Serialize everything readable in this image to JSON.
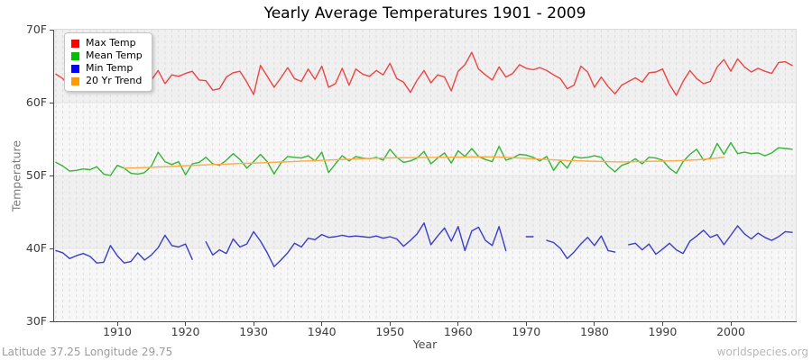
{
  "footer": {
    "left": "Latitude 37.25 Longitude 29.75",
    "right": "worldspecies.org"
  },
  "chart_data": {
    "type": "line",
    "title": "Yearly Average Temperatures 1901 - 2009",
    "xlabel": "Year",
    "ylabel": "Temperature",
    "ylim": [
      30,
      70
    ],
    "year_start": 1901,
    "year_end": 2009,
    "x_ticks": [
      1910,
      1920,
      1930,
      1940,
      1950,
      1960,
      1970,
      1980,
      1990,
      2000
    ],
    "y_ticks": [
      "70F",
      "60F",
      "50F",
      "40F",
      "30F"
    ],
    "grid": {
      "vertical": "dashed, one per year",
      "horizontal": "solid at 10F intervals"
    },
    "legend_position": "top-left",
    "series": [
      {
        "name": "Max Temp",
        "color": "#ee4444",
        "legend_color": "#ff0000",
        "values": [
          63.9,
          63.3,
          62.1,
          62.8,
          62.2,
          61.8,
          62.6,
          63.6,
          62.8,
          62.1,
          63.2,
          61.9,
          63.6,
          64.2,
          63.1,
          64.4,
          62.6,
          63.8,
          63.6,
          64.0,
          64.3,
          63.1,
          63.0,
          61.7,
          61.9,
          63.5,
          64.1,
          64.3,
          62.8,
          61.1,
          65.1,
          63.6,
          62.1,
          63.4,
          64.8,
          63.3,
          62.9,
          64.6,
          63.2,
          65.0,
          62.1,
          62.6,
          64.7,
          62.4,
          64.6,
          63.9,
          63.6,
          64.4,
          63.8,
          65.4,
          63.3,
          62.8,
          61.4,
          63.1,
          64.4,
          62.7,
          63.8,
          63.5,
          61.6,
          64.3,
          65.2,
          66.9,
          64.6,
          63.8,
          63.1,
          64.9,
          63.5,
          64.0,
          65.2,
          64.7,
          64.5,
          64.8,
          64.4,
          63.8,
          63.3,
          61.9,
          62.4,
          65.0,
          64.2,
          62.1,
          63.5,
          62.2,
          61.2,
          62.4,
          62.9,
          63.4,
          62.8,
          64.1,
          64.2,
          64.6,
          62.5,
          61.0,
          62.9,
          64.4,
          63.3,
          62.6,
          62.9,
          64.9,
          65.9,
          64.3,
          66.0,
          64.9,
          64.2,
          64.7,
          64.3,
          64.0,
          65.5,
          65.6,
          65.1
        ]
      },
      {
        "name": "Mean Temp",
        "color": "#35b535",
        "legend_color": "#00c000",
        "values": [
          51.8,
          51.3,
          50.6,
          50.7,
          50.9,
          50.8,
          51.2,
          50.2,
          50.0,
          51.4,
          51.0,
          50.3,
          50.2,
          50.4,
          51.3,
          53.2,
          51.9,
          51.5,
          51.9,
          50.1,
          51.6,
          51.8,
          52.5,
          51.6,
          51.4,
          52.1,
          53.0,
          52.2,
          51.0,
          51.9,
          52.9,
          51.9,
          50.2,
          51.7,
          52.6,
          52.5,
          52.4,
          52.7,
          52.0,
          53.2,
          50.4,
          51.6,
          52.7,
          52.0,
          52.6,
          52.4,
          52.3,
          52.5,
          52.1,
          53.6,
          52.5,
          51.8,
          52.0,
          52.4,
          53.3,
          51.6,
          52.4,
          53.1,
          51.7,
          53.4,
          52.6,
          53.7,
          52.6,
          52.2,
          51.9,
          54.0,
          52.1,
          52.4,
          52.9,
          52.8,
          52.5,
          52.0,
          52.6,
          50.7,
          52.0,
          51.0,
          52.6,
          52.4,
          52.5,
          52.7,
          52.5,
          51.3,
          50.5,
          51.4,
          51.7,
          52.3,
          51.6,
          52.5,
          52.4,
          52.1,
          51.0,
          50.3,
          51.9,
          52.9,
          53.6,
          52.1,
          52.4,
          54.4,
          52.9,
          54.5,
          53.0,
          53.2,
          53.0,
          53.1,
          52.7,
          53.1,
          53.8,
          53.7,
          53.6
        ]
      },
      {
        "name": "Min Temp",
        "color": "#3c3ccc",
        "legend_color": "#0000ff",
        "values": [
          39.7,
          39.4,
          38.6,
          39.0,
          39.3,
          38.9,
          38.0,
          38.1,
          40.4,
          39.0,
          38.0,
          38.2,
          39.4,
          38.4,
          39.1,
          40.1,
          41.8,
          40.4,
          40.2,
          40.6,
          38.5,
          null,
          40.9,
          39.1,
          39.8,
          39.3,
          41.3,
          40.2,
          40.6,
          42.3,
          41.0,
          39.4,
          37.5,
          38.4,
          39.4,
          40.7,
          40.2,
          41.4,
          41.2,
          41.9,
          41.5,
          41.6,
          41.8,
          41.6,
          41.7,
          41.6,
          41.5,
          41.7,
          41.4,
          41.6,
          41.3,
          40.3,
          41.1,
          42.0,
          43.5,
          40.5,
          41.7,
          42.8,
          41.0,
          43.0,
          39.7,
          42.4,
          42.9,
          41.1,
          40.4,
          43.0,
          39.7,
          null,
          null,
          41.6,
          41.6,
          null,
          41.1,
          40.8,
          40.0,
          38.6,
          39.5,
          40.6,
          41.5,
          40.4,
          41.7,
          39.7,
          39.5,
          null,
          40.5,
          40.7,
          39.8,
          40.6,
          39.2,
          39.9,
          40.7,
          39.8,
          39.3,
          41.0,
          41.7,
          42.5,
          41.5,
          41.9,
          40.5,
          41.8,
          43.1,
          42.0,
          41.3,
          42.1,
          41.5,
          41.1,
          41.6,
          42.3,
          42.2
        ]
      },
      {
        "name": "20 Yr Trend",
        "color": "#ffaa44",
        "legend_color": "#ff9900",
        "values": [
          null,
          null,
          null,
          null,
          null,
          null,
          null,
          null,
          null,
          null,
          51.0,
          51.03,
          51.06,
          51.09,
          51.12,
          51.16,
          51.2,
          51.25,
          51.3,
          51.34,
          51.38,
          51.42,
          51.46,
          51.5,
          51.53,
          51.57,
          51.6,
          51.64,
          51.67,
          51.7,
          51.74,
          51.78,
          51.81,
          51.85,
          51.88,
          51.92,
          51.96,
          52.0,
          52.04,
          52.08,
          52.12,
          52.16,
          52.2,
          52.24,
          52.28,
          52.31,
          52.34,
          52.37,
          52.39,
          52.41,
          52.43,
          52.44,
          52.45,
          52.46,
          52.47,
          52.48,
          52.49,
          52.5,
          52.51,
          52.52,
          52.53,
          52.55,
          52.56,
          52.57,
          52.56,
          52.54,
          52.5,
          52.45,
          52.4,
          52.35,
          52.3,
          52.25,
          52.2,
          52.15,
          52.1,
          52.05,
          52.02,
          52.0,
          51.98,
          51.95,
          51.92,
          51.9,
          51.88,
          51.87,
          51.88,
          51.9,
          51.92,
          51.94,
          51.96,
          51.98,
          52.0,
          52.03,
          52.06,
          52.1,
          52.15,
          52.22,
          52.3,
          52.4,
          52.5,
          null,
          null,
          null,
          null,
          null,
          null,
          null,
          null,
          null,
          null
        ]
      }
    ]
  }
}
